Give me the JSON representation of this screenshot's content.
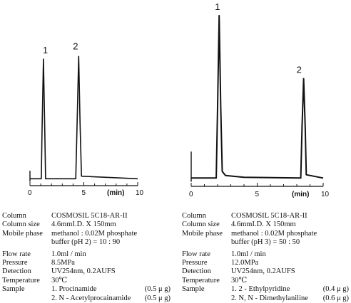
{
  "chart_data": [
    {
      "type": "line",
      "title": "",
      "xlabel": "(min)",
      "ylabel": "",
      "xlim": [
        0,
        10
      ],
      "x_ticks": [
        "0",
        "5",
        "10"
      ],
      "series": [
        {
          "points": [
            [
              0,
              0.02
            ],
            [
              1.05,
              0.02
            ],
            [
              1.12,
              0.38
            ],
            [
              1.25,
              0.94
            ],
            [
              1.38,
              0.38
            ],
            [
              1.45,
              0.02
            ],
            [
              4.25,
              0.02
            ],
            [
              4.38,
              0.45
            ],
            [
              4.52,
              0.96
            ],
            [
              4.65,
              0.45
            ],
            [
              4.78,
              0.04
            ],
            [
              10,
              0.02
            ]
          ]
        }
      ],
      "peaks": [
        {
          "label": "1",
          "t": 1.25
        },
        {
          "label": "2",
          "t": 4.52
        }
      ]
    },
    {
      "type": "line",
      "title": "",
      "xlabel": "(min)",
      "ylabel": "",
      "xlim": [
        0,
        10
      ],
      "x_ticks": [
        "0",
        "5",
        "10"
      ],
      "series": [
        {
          "points": [
            [
              0,
              0.02
            ],
            [
              1.9,
              0.02
            ],
            [
              2.0,
              0.45
            ],
            [
              2.12,
              1.0
            ],
            [
              2.24,
              0.45
            ],
            [
              2.35,
              0.06
            ],
            [
              2.6,
              0.035
            ],
            [
              4,
              0.025
            ],
            [
              8.3,
              0.02
            ],
            [
              8.4,
              0.33
            ],
            [
              8.52,
              0.62
            ],
            [
              8.64,
              0.33
            ],
            [
              8.72,
              0.04
            ],
            [
              10,
              0.02
            ]
          ]
        }
      ],
      "peaks": [
        {
          "label": "1",
          "t": 2.12
        },
        {
          "label": "2",
          "t": 8.52
        }
      ]
    }
  ],
  "conditions_left": {
    "rows": [
      {
        "key": "Column",
        "value": "COSMOSIL 5C18-AR-II"
      },
      {
        "key": "Column size",
        "value": "4.6mmI.D. X 150mm"
      },
      {
        "key": "Mobile phase",
        "value": "methanol : 0.02M phosphate"
      },
      {
        "key": "",
        "value": "buffer (pH 2) = 10 : 90"
      },
      {
        "key": "Flow rate",
        "value": "1.0ml / min"
      },
      {
        "key": "Pressure",
        "value": "8.5MPa"
      },
      {
        "key": "Detection",
        "value": "UV254nm, 0.2AUFS"
      },
      {
        "key": "Temperature",
        "value": "30℃"
      }
    ],
    "sample_key": "Sample",
    "samples": [
      {
        "name": "1. Procinamide",
        "amount": "(0.5 μ g)"
      },
      {
        "name": "2. N - Acetylprocainamide",
        "amount": "(0.5 μ g)"
      }
    ]
  },
  "conditions_right": {
    "rows": [
      {
        "key": "Column",
        "value": "COSMOSIL 5C18-AR-II"
      },
      {
        "key": "Column size",
        "value": "4.6mmI.D. X 150mm"
      },
      {
        "key": "Mobile phase",
        "value": "methanol : 0.02M phosphate"
      },
      {
        "key": "",
        "value": "buffer (pH 3) = 50 : 50"
      },
      {
        "key": "Flow rate",
        "value": "1.0ml / min"
      },
      {
        "key": "Pressure",
        "value": "12.0MPa"
      },
      {
        "key": "Detection",
        "value": "UV254nm, 0.2AUFS"
      },
      {
        "key": "Temperature",
        "value": "30℃"
      }
    ],
    "sample_key": "Sample",
    "samples": [
      {
        "name": "1. 2 - Ethylpyridine",
        "amount": "(0.4 μ g)"
      },
      {
        "name": "2. N, N - Dimethylaniline",
        "amount": "(0.6 μ g)"
      }
    ]
  }
}
